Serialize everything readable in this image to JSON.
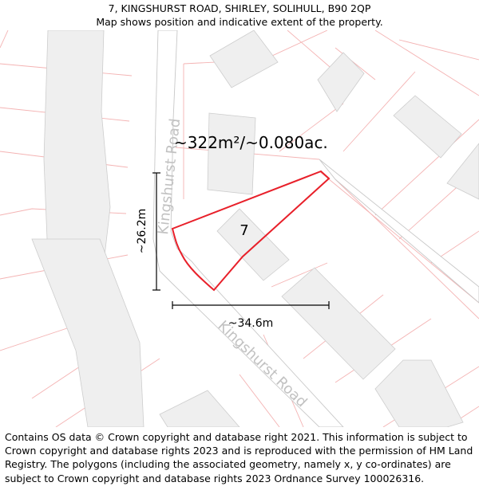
{
  "header": {
    "address": "7, KINGSHURST ROAD, SHIRLEY, SOLIHULL, B90 2QP",
    "subtitle": "Map shows position and indicative extent of the property."
  },
  "map": {
    "area_label": "~322m²/~0.080ac.",
    "house_number": "7",
    "road_name_upper": "Kingshurst Road",
    "road_name_lower": "Kingshurst Road",
    "dimension_height": "~26.2m",
    "dimension_width": "~34.6m",
    "colors": {
      "property_outline": "#e8202a",
      "plot_lines": "#f4b3b3",
      "buildings": "#efefef",
      "road_edges": "#c8c8c8"
    }
  },
  "footer": {
    "copyright": "Contains OS data © Crown copyright and database right 2021. This information is subject to Crown copyright and database rights 2023 and is reproduced with the permission of HM Land Registry. The polygons (including the associated geometry, namely x, y co-ordinates) are subject to Crown copyright and database rights 2023 Ordnance Survey 100026316."
  }
}
